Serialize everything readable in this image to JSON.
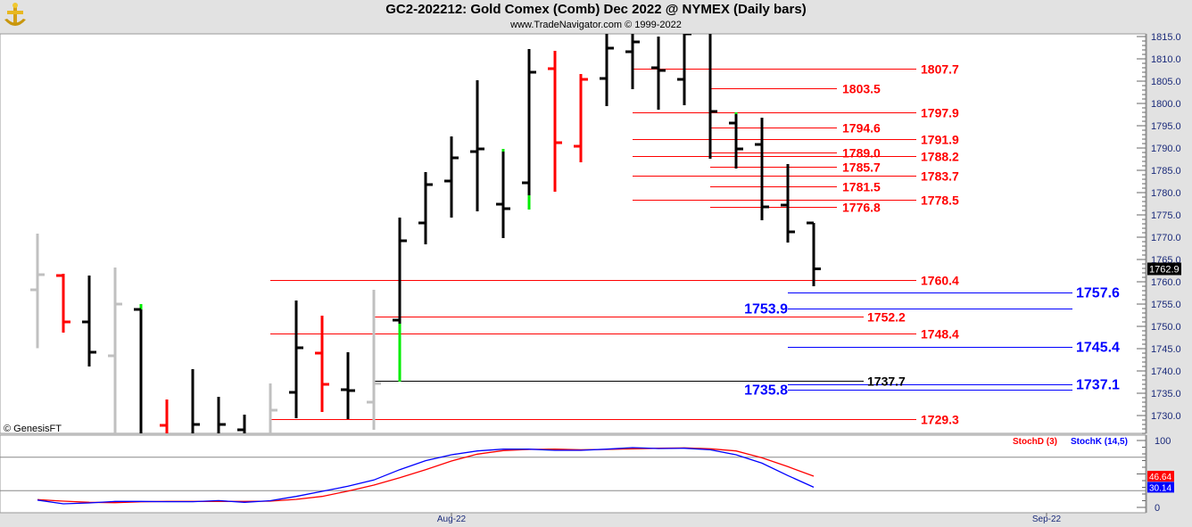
{
  "header": {
    "title": "GC2-202212:  Gold Comex (Comb) Dec 2022 @ NYMEX  (Daily bars)",
    "subtitle": "www.TradeNavigator.com © 1999-2022",
    "logo": "gold-anchor-logo"
  },
  "watermark": "© GenesisFT",
  "chart_data": [
    {
      "type": "ohlc",
      "ylim": [
        1726,
        1817
      ],
      "y_ticks": [
        "1815.0",
        "1810.0",
        "1805.0",
        "1800.0",
        "1795.0",
        "1790.0",
        "1785.0",
        "1780.0",
        "1775.0",
        "1770.0",
        "1765.0",
        "1760.0",
        "1755.0",
        "1750.0",
        "1745.0",
        "1740.0",
        "1735.0",
        "1730.0"
      ],
      "last_price": "1762.9",
      "x_labels": [
        {
          "bar": 16,
          "label": "Aug-22"
        },
        {
          "bar": 39,
          "label": "Sep-22"
        }
      ],
      "colors": {
        "up": "#000000",
        "down": "#ff0000",
        "neutral": "#c0c0c0",
        "accent": "#00ee00"
      },
      "bars": [
        {
          "o": 1758.2,
          "h": 1770.8,
          "l": 1745.1,
          "c": 1761.6,
          "color": "neutral"
        },
        {
          "o": 1761.4,
          "h": 1761.8,
          "l": 1748.6,
          "c": 1751.0,
          "color": "down"
        },
        {
          "o": 1751.0,
          "h": 1761.4,
          "l": 1741.0,
          "c": 1744.2,
          "color": "up"
        },
        {
          "o": 1743.4,
          "h": 1763.2,
          "l": 1720,
          "c": 1755.0,
          "color": "neutral"
        },
        {
          "o": 1753.8,
          "h": 1755.0,
          "l": 1720,
          "c": null,
          "color": "up",
          "accent": [
            1753.8,
            1755.0
          ]
        },
        {
          "o": 1727.8,
          "h": 1733.6,
          "l": 1720,
          "c": null,
          "color": "down"
        },
        {
          "o": null,
          "h": 1740.4,
          "l": 1720,
          "c": 1728.0,
          "color": "up"
        },
        {
          "o": null,
          "h": 1734.2,
          "l": 1720,
          "c": 1728.0,
          "color": "up"
        },
        {
          "o": 1726.8,
          "h": 1730.2,
          "l": 1720,
          "c": null,
          "color": "up"
        },
        {
          "o": null,
          "h": 1737.2,
          "l": 1720,
          "c": 1731.2,
          "color": "neutral"
        },
        {
          "o": 1735.2,
          "h": 1755.8,
          "l": 1729.4,
          "c": 1745.2,
          "color": "up"
        },
        {
          "o": 1744.0,
          "h": 1752.4,
          "l": 1730.8,
          "c": 1737.0,
          "color": "down"
        },
        {
          "o": 1735.8,
          "h": 1744.2,
          "l": 1729.2,
          "c": 1735.6,
          "color": "up"
        },
        {
          "o": 1733.0,
          "h": 1758.2,
          "l": 1726.8,
          "c": 1737.2,
          "color": "neutral"
        },
        {
          "o": 1751.4,
          "h": 1774.4,
          "l": 1737.6,
          "c": 1769.2,
          "color": "up",
          "accent": [
            1737.6,
            1750.6
          ]
        },
        {
          "o": 1773.2,
          "h": 1784.6,
          "l": 1768.4,
          "c": 1781.8,
          "color": "up"
        },
        {
          "o": 1782.6,
          "h": 1792.6,
          "l": 1774.4,
          "c": 1787.8,
          "color": "up"
        },
        {
          "o": 1789.2,
          "h": 1805.2,
          "l": 1775.8,
          "c": 1789.8,
          "color": "up"
        },
        {
          "o": 1777.4,
          "h": 1789.8,
          "l": 1769.8,
          "c": 1776.4,
          "color": "up",
          "accent": [
            1789.2,
            1789.8
          ]
        },
        {
          "o": 1782.2,
          "h": 1812.2,
          "l": 1776.2,
          "c": 1807.0,
          "color": "up",
          "accent": [
            1776.2,
            1779.4
          ]
        },
        {
          "o": 1807.8,
          "h": 1811.8,
          "l": 1780.2,
          "c": 1791.2,
          "color": "down"
        },
        {
          "o": 1790.4,
          "h": 1806.6,
          "l": 1786.8,
          "c": 1805.4,
          "color": "down"
        },
        {
          "o": 1805.6,
          "h": 1817,
          "l": 1799.4,
          "c": 1812.4,
          "color": "up"
        },
        {
          "o": 1811.6,
          "h": 1817,
          "l": 1803.2,
          "c": 1813.8,
          "color": "up"
        },
        {
          "o": 1808.0,
          "h": 1815.0,
          "l": 1798.6,
          "c": 1807.4,
          "color": "up"
        },
        {
          "o": 1805.4,
          "h": 1815.6,
          "l": 1799.6,
          "c": 1815.6,
          "color": "up"
        },
        {
          "o": null,
          "h": 1817,
          "l": 1787.6,
          "c": 1798.2,
          "color": "up"
        },
        {
          "o": 1795.6,
          "h": 1798.0,
          "l": 1785.4,
          "c": 1789.8,
          "color": "up",
          "accent": [
            1797.6,
            1798.0
          ]
        },
        {
          "o": 1790.8,
          "h": 1796.8,
          "l": 1773.8,
          "c": 1776.8,
          "color": "up"
        },
        {
          "o": 1777.2,
          "h": 1786.4,
          "l": 1768.8,
          "c": 1771.2,
          "color": "up"
        },
        {
          "o": 1773.2,
          "h": 1773.2,
          "l": 1759.0,
          "c": 1762.9,
          "color": "up"
        }
      ],
      "levels": [
        {
          "value": 1807.7,
          "label": "1807.7",
          "color": "#ff0000",
          "from_bar": 23,
          "group": "long"
        },
        {
          "value": 1803.5,
          "label": "1803.5",
          "color": "#ff0000",
          "from_bar": 26,
          "group": "short"
        },
        {
          "value": 1797.9,
          "label": "1797.9",
          "color": "#ff0000",
          "from_bar": 23,
          "group": "long"
        },
        {
          "value": 1794.6,
          "label": "1794.6",
          "color": "#ff0000",
          "from_bar": 26,
          "group": "short"
        },
        {
          "value": 1791.9,
          "label": "1791.9",
          "color": "#ff0000",
          "from_bar": 23,
          "group": "long"
        },
        {
          "value": 1789.0,
          "label": "1789.0",
          "color": "#ff0000",
          "from_bar": 26,
          "group": "short"
        },
        {
          "value": 1788.2,
          "label": "1788.2",
          "color": "#ff0000",
          "from_bar": 23,
          "group": "long"
        },
        {
          "value": 1785.7,
          "label": "1785.7",
          "color": "#ff0000",
          "from_bar": 26,
          "group": "short"
        },
        {
          "value": 1783.7,
          "label": "1783.7",
          "color": "#ff0000",
          "from_bar": 23,
          "group": "long"
        },
        {
          "value": 1781.5,
          "label": "1781.5",
          "color": "#ff0000",
          "from_bar": 26,
          "group": "short"
        },
        {
          "value": 1778.5,
          "label": "1778.5",
          "color": "#ff0000",
          "from_bar": 23,
          "group": "long"
        },
        {
          "value": 1776.8,
          "label": "1776.8",
          "color": "#ff0000",
          "from_bar": 26,
          "group": "short"
        },
        {
          "value": 1760.4,
          "label": "1760.4",
          "color": "#ff0000",
          "from_bar": 9,
          "group": "long"
        },
        {
          "value": 1757.6,
          "label": "1757.6",
          "color": "#0000ff",
          "from_bar": 29,
          "group": "blue-right"
        },
        {
          "value": 1753.9,
          "label": "1753.9",
          "color": "#0000ff",
          "from_bar": 29,
          "group": "blue-left"
        },
        {
          "value": 1752.2,
          "label": "1752.2",
          "color": "#ff0000",
          "from_bar": 13,
          "group": "mid"
        },
        {
          "value": 1748.4,
          "label": "1748.4",
          "color": "#ff0000",
          "from_bar": 9,
          "group": "long"
        },
        {
          "value": 1745.4,
          "label": "1745.4",
          "color": "#0000ff",
          "from_bar": 29,
          "group": "blue-right"
        },
        {
          "value": 1737.7,
          "label": "1737.7",
          "color": "#000000",
          "from_bar": 13,
          "group": "mid"
        },
        {
          "value": 1737.1,
          "label": "1737.1",
          "color": "#0000ff",
          "from_bar": 29,
          "group": "blue-right"
        },
        {
          "value": 1735.8,
          "label": "1735.8",
          "color": "#0000ff",
          "from_bar": 29,
          "group": "blue-left"
        },
        {
          "value": 1729.3,
          "label": "1729.3",
          "color": "#ff0000",
          "from_bar": 9,
          "group": "long"
        }
      ]
    },
    {
      "type": "line",
      "ylim": [
        0,
        100
      ],
      "y_ticks": [
        "100",
        "0"
      ],
      "guides": [
        75,
        25
      ],
      "series": [
        {
          "name": "StochD (3)",
          "color": "#ff0000",
          "last": "46.64",
          "values": [
            11.6,
            9.3,
            7.6,
            7.1,
            8.4,
            9,
            9,
            9,
            9,
            9.3,
            12,
            16.4,
            24.4,
            33.3,
            44.4,
            56.4,
            69.3,
            79.6,
            84.9,
            86.7,
            87.1,
            86.2,
            86.7,
            87.6,
            88.4,
            88.9,
            87.6,
            84.4,
            74.2,
            60.9,
            46.64
          ]
        },
        {
          "name": "StochK (14,5)",
          "color": "#0000ff",
          "last": "30.14",
          "values": [
            11,
            5.3,
            6.7,
            8.9,
            9,
            8.5,
            8.5,
            10.2,
            7.6,
            10,
            16.4,
            24,
            31.6,
            40.9,
            56.4,
            69.8,
            78.7,
            84.4,
            87.1,
            87.1,
            85.3,
            85.3,
            87.1,
            89.3,
            88,
            88.4,
            86.2,
            78.7,
            66.2,
            47.6,
            30.14
          ]
        }
      ]
    }
  ]
}
